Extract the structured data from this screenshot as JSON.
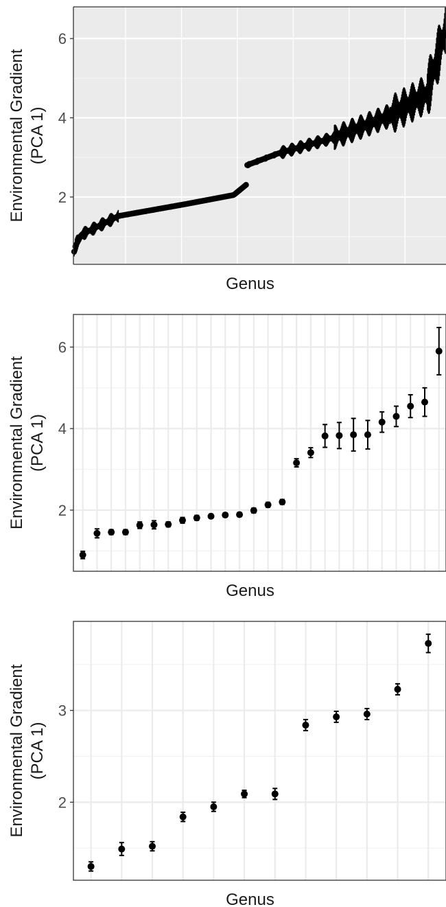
{
  "chart_data": [
    {
      "type": "scatter",
      "theme": "grey",
      "xlabel": "Genus",
      "ylabel": [
        "Environmental Gradient",
        "(PCA 1)"
      ],
      "ylim": [
        0.3,
        6.8
      ],
      "yticks": [
        2,
        4,
        6
      ],
      "xticks_labeled": false,
      "error_bars": true,
      "n_points": 640,
      "series": [
        {
          "segments": [
            {
              "x_range": [
                0,
                0.003
              ],
              "y_range": [
                0.62,
                0.75
              ],
              "err": 0.12
            },
            {
              "x_range": [
                0.003,
                0.02
              ],
              "y_range": [
                0.75,
                1.05
              ],
              "err": 0.15
            },
            {
              "x_range": [
                0.02,
                0.12
              ],
              "y_range": [
                1.05,
                1.52
              ],
              "err": 0.12
            },
            {
              "x_range": [
                0.12,
                0.3
              ],
              "y_range": [
                1.52,
                1.82
              ],
              "err": 0.05
            },
            {
              "x_range": [
                0.3,
                0.43
              ],
              "y_range": [
                1.82,
                2.05
              ],
              "err": 0.04
            },
            {
              "x_range": [
                0.43,
                0.465
              ],
              "y_range": [
                2.05,
                2.32
              ],
              "err": 0.04
            },
            {
              "x_range": [
                0.465,
                0.55
              ],
              "y_range": [
                2.8,
                3.1
              ],
              "err": 0.06
            },
            {
              "x_range": [
                0.55,
                0.7
              ],
              "y_range": [
                3.1,
                3.5
              ],
              "err": 0.12
            },
            {
              "x_range": [
                0.7,
                0.85
              ],
              "y_range": [
                3.5,
                4.05
              ],
              "err": 0.22
            },
            {
              "x_range": [
                0.85,
                0.95
              ],
              "y_range": [
                4.05,
                4.6
              ],
              "err": 0.35
            },
            {
              "x_range": [
                0.95,
                1.0
              ],
              "y_range": [
                4.6,
                6.2
              ],
              "err": 0.5
            }
          ]
        }
      ]
    },
    {
      "type": "scatter",
      "theme": "bw",
      "xlabel": "Genus",
      "ylabel": [
        "Environmental Gradient",
        "(PCA 1)"
      ],
      "ylim": [
        0.5,
        6.8
      ],
      "yticks": [
        2,
        4,
        6
      ],
      "xticks_labeled": false,
      "error_bars": true,
      "x": [
        1,
        2,
        3,
        4,
        5,
        6,
        7,
        8,
        9,
        10,
        11,
        12,
        13,
        14,
        15,
        16,
        17,
        18,
        19,
        20,
        21,
        22,
        23,
        24,
        25,
        26
      ],
      "y": [
        0.9,
        1.43,
        1.46,
        1.46,
        1.63,
        1.64,
        1.65,
        1.75,
        1.81,
        1.85,
        1.88,
        1.89,
        1.99,
        2.13,
        2.2,
        3.16,
        3.41,
        3.82,
        3.83,
        3.85,
        3.85,
        4.16,
        4.3,
        4.55,
        4.65,
        5.9
      ],
      "err": [
        0.09,
        0.11,
        0.06,
        0.06,
        0.08,
        0.1,
        0.06,
        0.07,
        0.06,
        0.05,
        0.05,
        0.05,
        0.06,
        0.06,
        0.06,
        0.1,
        0.12,
        0.28,
        0.32,
        0.4,
        0.35,
        0.25,
        0.25,
        0.28,
        0.35,
        0.58
      ]
    },
    {
      "type": "scatter",
      "theme": "bw",
      "xlabel": "Genus",
      "ylabel": [
        "Environmental Gradient",
        "(PCA 1)"
      ],
      "ylim": [
        1.15,
        3.97
      ],
      "yticks": [
        2,
        3
      ],
      "xticks_labeled": false,
      "error_bars": true,
      "x": [
        1,
        2,
        3,
        4,
        5,
        6,
        7,
        8,
        9,
        10,
        11,
        12
      ],
      "y": [
        1.3,
        1.49,
        1.52,
        1.84,
        1.95,
        2.09,
        2.09,
        2.84,
        2.93,
        2.96,
        3.23,
        3.73
      ],
      "err": [
        0.05,
        0.07,
        0.05,
        0.05,
        0.05,
        0.04,
        0.06,
        0.06,
        0.06,
        0.06,
        0.06,
        0.1
      ]
    }
  ]
}
